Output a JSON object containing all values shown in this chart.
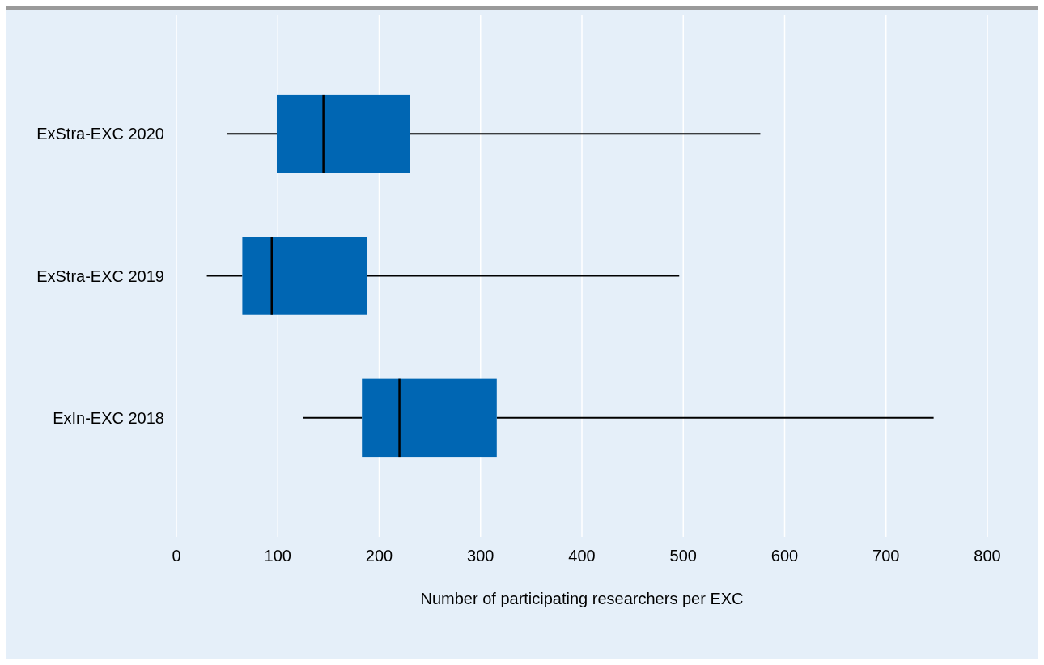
{
  "chart_data": {
    "type": "box",
    "orientation": "horizontal",
    "categories": [
      "ExStra-EXC 2020",
      "ExStra-EXC 2019",
      "ExIn-EXC 2018"
    ],
    "boxes": [
      {
        "low": 50,
        "q1": 99,
        "median": 145,
        "q3": 230,
        "high": 576
      },
      {
        "low": 30,
        "q1": 65,
        "median": 94,
        "q3": 188,
        "high": 496
      },
      {
        "low": 125,
        "q1": 183,
        "median": 220,
        "q3": 316,
        "high": 747
      }
    ],
    "color": "#0066b3",
    "xlim": [
      0,
      800
    ],
    "xticks": [
      0,
      100,
      200,
      300,
      400,
      500,
      600,
      700,
      800
    ],
    "xlabel": "Number of participating researchers per EXC",
    "grid": "x"
  }
}
